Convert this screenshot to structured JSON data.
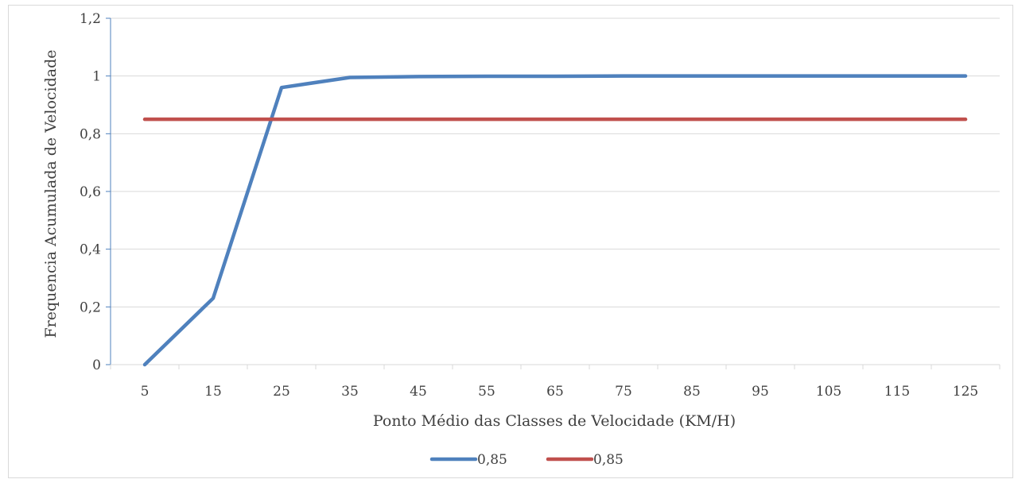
{
  "chart_data": {
    "type": "line",
    "title": "",
    "xlabel": "Ponto Médio das Classes de Velocidade (KM/H)",
    "ylabel": "Frequencia Acumulada de Velocidade",
    "categories": [
      "5",
      "15",
      "25",
      "35",
      "45",
      "55",
      "65",
      "75",
      "85",
      "95",
      "105",
      "115",
      "125"
    ],
    "y_tick_labels": [
      "0",
      "0,2",
      "0,4",
      "0,6",
      "0,8",
      "1",
      "1,2"
    ],
    "y_ticks": [
      0,
      0.2,
      0.4,
      0.6,
      0.8,
      1.0,
      1.2
    ],
    "ylim": [
      0,
      1.2
    ],
    "grid": true,
    "legend_position": "bottom",
    "series": [
      {
        "name": "0,85",
        "color": "#4f81bd",
        "values": [
          0,
          0.23,
          0.96,
          0.995,
          0.998,
          0.999,
          0.999,
          1.0,
          1.0,
          1.0,
          1.0,
          1.0,
          1.0
        ]
      },
      {
        "name": "0,85",
        "color": "#c0504d",
        "values": [
          0.85,
          0.85,
          0.85,
          0.85,
          0.85,
          0.85,
          0.85,
          0.85,
          0.85,
          0.85,
          0.85,
          0.85,
          0.85
        ]
      }
    ]
  }
}
